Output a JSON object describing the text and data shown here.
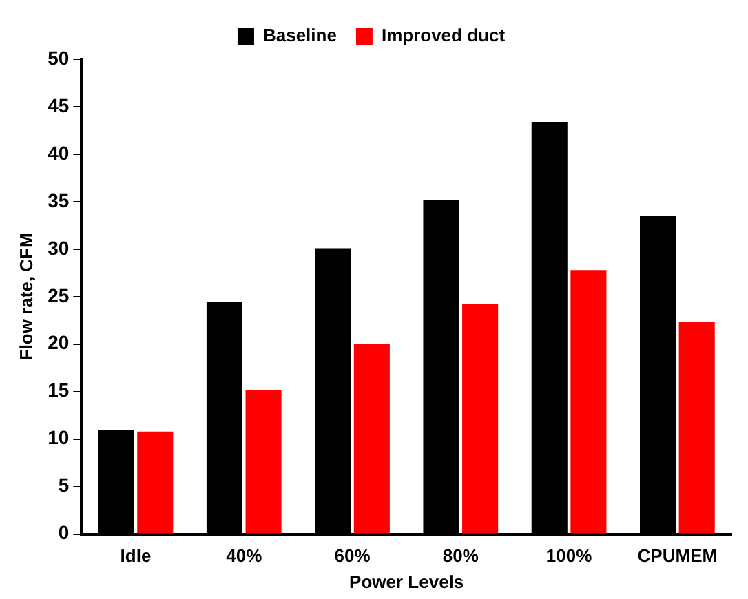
{
  "chart_data": {
    "type": "bar",
    "xlabel": "Power Levels",
    "ylabel": "Flow rate, CFM",
    "categories": [
      "Idle",
      "40%",
      "60%",
      "80%",
      "100%",
      "CPUMEM"
    ],
    "series": [
      {
        "name": "Baseline",
        "color": "#000000",
        "values": [
          11.0,
          24.4,
          30.1,
          35.2,
          43.4,
          33.5
        ]
      },
      {
        "name": "Improved duct",
        "color": "#ff0000",
        "values": [
          10.8,
          15.2,
          20.0,
          24.2,
          27.8,
          22.3
        ]
      }
    ],
    "ylim": [
      0,
      50
    ],
    "yticks": [
      0,
      5,
      10,
      15,
      20,
      25,
      30,
      35,
      40,
      45,
      50
    ],
    "grid": false,
    "legend": "top"
  }
}
